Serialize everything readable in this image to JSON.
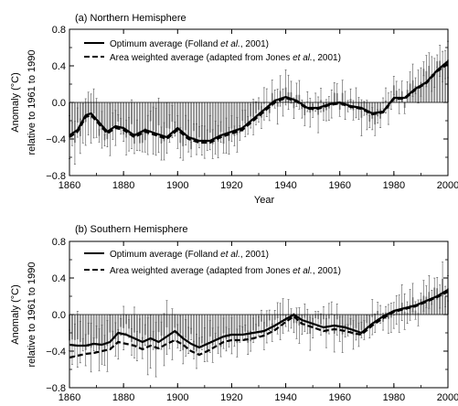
{
  "chart_data": [
    {
      "type": "bar",
      "title": "(a)  Northern Hemisphere",
      "xlabel": "Year",
      "ylabel_line1": "Anomaly (°C)",
      "ylabel_line2": "relative to 1961 to 1990",
      "xlim": [
        1860,
        2000
      ],
      "ylim": [
        -0.8,
        0.8
      ],
      "xticks": [
        1860,
        1880,
        1900,
        1920,
        1940,
        1960,
        1980,
        2000
      ],
      "yticks": [
        -0.8,
        -0.4,
        0.0,
        0.4,
        0.8
      ],
      "legend_position": "top-left",
      "legend": [
        {
          "label_pre": "Optimum average (Folland ",
          "label_ital": "et al.",
          "label_post": ", 2001)",
          "style": "solid"
        },
        {
          "label_pre": "Area weighted average (adapted from Jones ",
          "label_ital": "et al.",
          "label_post": ", 2001)",
          "style": "dashed"
        }
      ],
      "bars_key": [
        [
          1861,
          -0.36
        ],
        [
          1865,
          -0.3
        ],
        [
          1868,
          -0.18
        ],
        [
          1872,
          -0.32
        ],
        [
          1876,
          -0.3
        ],
        [
          1879,
          -0.25
        ],
        [
          1882,
          -0.33
        ],
        [
          1886,
          -0.38
        ],
        [
          1890,
          -0.3
        ],
        [
          1894,
          -0.36
        ],
        [
          1897,
          -0.3
        ],
        [
          1900,
          -0.32
        ],
        [
          1903,
          -0.4
        ],
        [
          1906,
          -0.42
        ],
        [
          1909,
          -0.45
        ],
        [
          1912,
          -0.42
        ],
        [
          1916,
          -0.38
        ],
        [
          1920,
          -0.32
        ],
        [
          1924,
          -0.25
        ],
        [
          1928,
          -0.18
        ],
        [
          1932,
          -0.08
        ],
        [
          1936,
          0.02
        ],
        [
          1939,
          0.08
        ],
        [
          1942,
          0.06
        ],
        [
          1946,
          -0.05
        ],
        [
          1950,
          -0.12
        ],
        [
          1954,
          -0.05
        ],
        [
          1957,
          0.05
        ],
        [
          1960,
          0.03
        ],
        [
          1964,
          -0.04
        ],
        [
          1968,
          -0.06
        ],
        [
          1971,
          -0.12
        ],
        [
          1974,
          -0.14
        ],
        [
          1977,
          -0.05
        ],
        [
          1980,
          0.08
        ],
        [
          1984,
          0.05
        ],
        [
          1987,
          0.18
        ],
        [
          1990,
          0.28
        ],
        [
          1994,
          0.3
        ],
        [
          1997,
          0.45
        ],
        [
          2000,
          0.42
        ]
      ],
      "series": [
        {
          "name": "Optimum average (Folland et al., 2001)",
          "x": [
            1860,
            1863,
            1866,
            1868,
            1871,
            1874,
            1877,
            1880,
            1884,
            1888,
            1892,
            1896,
            1900,
            1904,
            1908,
            1912,
            1916,
            1920,
            1924,
            1928,
            1932,
            1936,
            1940,
            1944,
            1948,
            1952,
            1956,
            1960,
            1964,
            1968,
            1972,
            1976,
            1980,
            1984,
            1988,
            1992,
            1996,
            2000
          ],
          "y": [
            -0.36,
            -0.3,
            -0.14,
            -0.12,
            -0.22,
            -0.32,
            -0.26,
            -0.28,
            -0.36,
            -0.3,
            -0.34,
            -0.38,
            -0.28,
            -0.38,
            -0.42,
            -0.42,
            -0.36,
            -0.32,
            -0.28,
            -0.18,
            -0.08,
            0.02,
            0.06,
            0.02,
            -0.06,
            -0.06,
            -0.02,
            0.0,
            -0.04,
            -0.06,
            -0.12,
            -0.1,
            0.05,
            0.05,
            0.15,
            0.22,
            0.35,
            0.45
          ]
        },
        {
          "name": "Area weighted average (adapted from Jones et al., 2001)",
          "x": [
            1860,
            1863,
            1866,
            1868,
            1871,
            1874,
            1877,
            1880,
            1884,
            1888,
            1892,
            1896,
            1900,
            1904,
            1908,
            1912,
            1916,
            1920,
            1924,
            1928,
            1932,
            1936,
            1940,
            1944,
            1948,
            1952,
            1956,
            1960,
            1964,
            1968,
            1972,
            1976,
            1980,
            1984,
            1988,
            1992,
            1996,
            2000
          ],
          "y": [
            -0.38,
            -0.32,
            -0.16,
            -0.14,
            -0.24,
            -0.34,
            -0.28,
            -0.3,
            -0.38,
            -0.32,
            -0.36,
            -0.4,
            -0.3,
            -0.4,
            -0.44,
            -0.44,
            -0.38,
            -0.34,
            -0.3,
            -0.2,
            -0.1,
            0.0,
            0.05,
            0.01,
            -0.07,
            -0.07,
            -0.03,
            -0.01,
            -0.05,
            -0.07,
            -0.13,
            -0.11,
            0.04,
            0.04,
            0.14,
            0.21,
            0.34,
            0.42
          ]
        }
      ]
    },
    {
      "type": "bar",
      "title": "(b)  Southern Hemisphere",
      "xlabel": "",
      "ylabel_line1": "Anomaly (°C)",
      "ylabel_line2": "relative to 1961 to 1990",
      "xlim": [
        1860,
        2000
      ],
      "ylim": [
        -0.8,
        0.8
      ],
      "xticks": [
        1860,
        1880,
        1900,
        1920,
        1940,
        1960,
        1980,
        2000
      ],
      "yticks": [
        -0.8,
        -0.4,
        0.0,
        0.4,
        0.8
      ],
      "legend_position": "top-left",
      "legend": [
        {
          "label_pre": "Optimum average (Folland ",
          "label_ital": "et al.",
          "label_post": ", 2001)",
          "style": "solid"
        },
        {
          "label_pre": "Area weighted average (adapted from Jones ",
          "label_ital": "et al.",
          "label_post": ", 2001)",
          "style": "dashed"
        }
      ],
      "bars_key": [
        [
          1861,
          -0.33
        ],
        [
          1864,
          -0.35
        ],
        [
          1868,
          -0.3
        ],
        [
          1872,
          -0.32
        ],
        [
          1876,
          -0.28
        ],
        [
          1880,
          -0.2
        ],
        [
          1884,
          -0.25
        ],
        [
          1888,
          -0.3
        ],
        [
          1892,
          -0.28
        ],
        [
          1896,
          -0.22
        ],
        [
          1899,
          -0.2
        ],
        [
          1902,
          -0.28
        ],
        [
          1906,
          -0.32
        ],
        [
          1909,
          -0.38
        ],
        [
          1912,
          -0.32
        ],
        [
          1916,
          -0.25
        ],
        [
          1920,
          -0.22
        ],
        [
          1924,
          -0.22
        ],
        [
          1928,
          -0.2
        ],
        [
          1932,
          -0.18
        ],
        [
          1936,
          -0.12
        ],
        [
          1940,
          -0.05
        ],
        [
          1943,
          0.0
        ],
        [
          1946,
          -0.08
        ],
        [
          1950,
          -0.12
        ],
        [
          1954,
          -0.16
        ],
        [
          1957,
          -0.1
        ],
        [
          1960,
          -0.12
        ],
        [
          1964,
          -0.18
        ],
        [
          1967,
          -0.2
        ],
        [
          1970,
          -0.12
        ],
        [
          1974,
          -0.05
        ],
        [
          1978,
          0.02
        ],
        [
          1982,
          0.05
        ],
        [
          1986,
          0.08
        ],
        [
          1990,
          0.12
        ],
        [
          1993,
          0.18
        ],
        [
          1996,
          0.22
        ],
        [
          1998,
          0.3
        ],
        [
          2000,
          0.25
        ]
      ],
      "series": [
        {
          "name": "Optimum average (Folland et al., 2001)",
          "x": [
            1860,
            1863,
            1866,
            1869,
            1872,
            1875,
            1878,
            1881,
            1884,
            1887,
            1890,
            1893,
            1896,
            1899,
            1902,
            1905,
            1908,
            1911,
            1914,
            1917,
            1920,
            1924,
            1928,
            1932,
            1936,
            1940,
            1943,
            1946,
            1950,
            1954,
            1958,
            1962,
            1966,
            1968,
            1972,
            1976,
            1980,
            1984,
            1988,
            1992,
            1996,
            2000
          ],
          "y": [
            -0.33,
            -0.34,
            -0.34,
            -0.32,
            -0.33,
            -0.3,
            -0.2,
            -0.22,
            -0.26,
            -0.3,
            -0.26,
            -0.3,
            -0.24,
            -0.18,
            -0.26,
            -0.32,
            -0.36,
            -0.32,
            -0.28,
            -0.24,
            -0.22,
            -0.22,
            -0.2,
            -0.18,
            -0.12,
            -0.05,
            0.0,
            -0.06,
            -0.1,
            -0.14,
            -0.12,
            -0.14,
            -0.18,
            -0.2,
            -0.1,
            -0.02,
            0.04,
            0.07,
            0.1,
            0.15,
            0.2,
            0.27
          ]
        },
        {
          "name": "Area weighted average (adapted from Jones et al., 2001)",
          "x": [
            1860,
            1863,
            1866,
            1869,
            1872,
            1875,
            1878,
            1881,
            1884,
            1887,
            1890,
            1893,
            1896,
            1899,
            1902,
            1905,
            1908,
            1911,
            1914,
            1917,
            1920,
            1924,
            1928,
            1932,
            1936,
            1940,
            1943,
            1946,
            1950,
            1954,
            1958,
            1962,
            1966,
            1968,
            1972,
            1976,
            1980,
            1984,
            1988,
            1992,
            1996,
            2000
          ],
          "y": [
            -0.47,
            -0.45,
            -0.43,
            -0.42,
            -0.4,
            -0.38,
            -0.3,
            -0.32,
            -0.34,
            -0.38,
            -0.34,
            -0.37,
            -0.32,
            -0.28,
            -0.33,
            -0.4,
            -0.44,
            -0.4,
            -0.35,
            -0.3,
            -0.28,
            -0.28,
            -0.26,
            -0.23,
            -0.17,
            -0.08,
            -0.02,
            -0.1,
            -0.14,
            -0.18,
            -0.16,
            -0.18,
            -0.21,
            -0.22,
            -0.12,
            -0.04,
            0.03,
            0.06,
            0.09,
            0.14,
            0.19,
            0.25
          ]
        }
      ]
    }
  ]
}
